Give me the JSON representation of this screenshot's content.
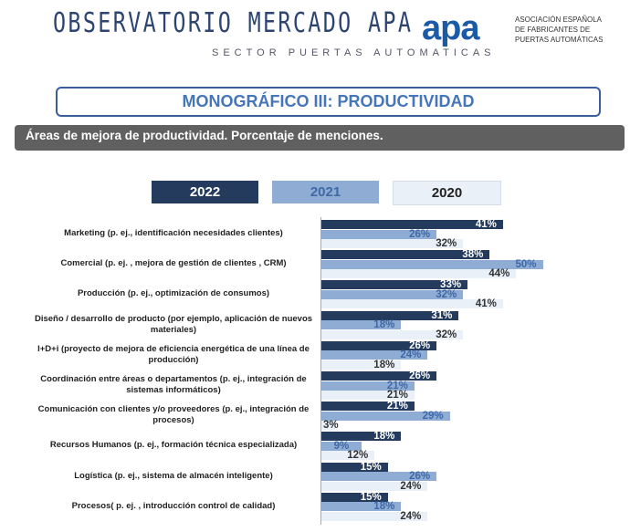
{
  "header": {
    "brand": "OBSERVATORIO MERCADO APA",
    "brand_sub": "SECTOR PUERTAS AUTOMATICAS",
    "logo": "apa",
    "logo_text": [
      "ASOCIACIÓN ESPAÑOLA",
      "DE FABRICANTES DE",
      "PUERTAS AUTOMÁTICAS"
    ]
  },
  "monograph_title": "MONOGRÁFICO III: PRODUCTIVIDAD",
  "chart_data": {
    "type": "bar",
    "orientation": "horizontal",
    "title": "Áreas de mejora de productividad. Porcentaje de menciones.",
    "xlabel": "",
    "ylabel": "",
    "xlim": [
      0,
      55
    ],
    "grid": false,
    "legend_position": "top",
    "categories": [
      "Marketing (p. ej., identificación necesidades clientes)",
      "Comercial (p. ej. , mejora de gestión de clientes ,  CRM)",
      "Producción (p. ej., optimización de consumos)",
      "Diseño / desarrollo de producto (por ejemplo, aplicación de nuevos materiales)",
      "I+D+i (proyecto de mejora de eficiencia energética de una línea de producción)",
      "Coordinación entre áreas o departamentos (p. ej., integración de  sistemas informáticos)",
      "Comunicación con clientes y/o proveedores (p. ej., integración de procesos)",
      "Recursos Humanos (p. ej., formación técnica especializada)",
      "Logística (p. ej., sistema de almacén inteligente)",
      "Procesos( p. ej. , introducción control de calidad)"
    ],
    "series": [
      {
        "name": "2022",
        "color": "#243b5e",
        "label_color": "#ffffff",
        "legend_text_color": "#ffffff",
        "values": [
          41,
          38,
          33,
          31,
          26,
          26,
          21,
          18,
          15,
          15
        ]
      },
      {
        "name": "2021",
        "color": "#8fadd4",
        "label_color": "#3f68a6",
        "legend_text_color": "#3f68a6",
        "values": [
          26,
          50,
          32,
          18,
          24,
          21,
          29,
          9,
          26,
          18
        ]
      },
      {
        "name": "2020",
        "color": "#eaf0f8",
        "label_color": "#333333",
        "legend_text_color": "#222222",
        "values": [
          32,
          44,
          41,
          32,
          18,
          21,
          3,
          12,
          24,
          24
        ]
      }
    ]
  }
}
